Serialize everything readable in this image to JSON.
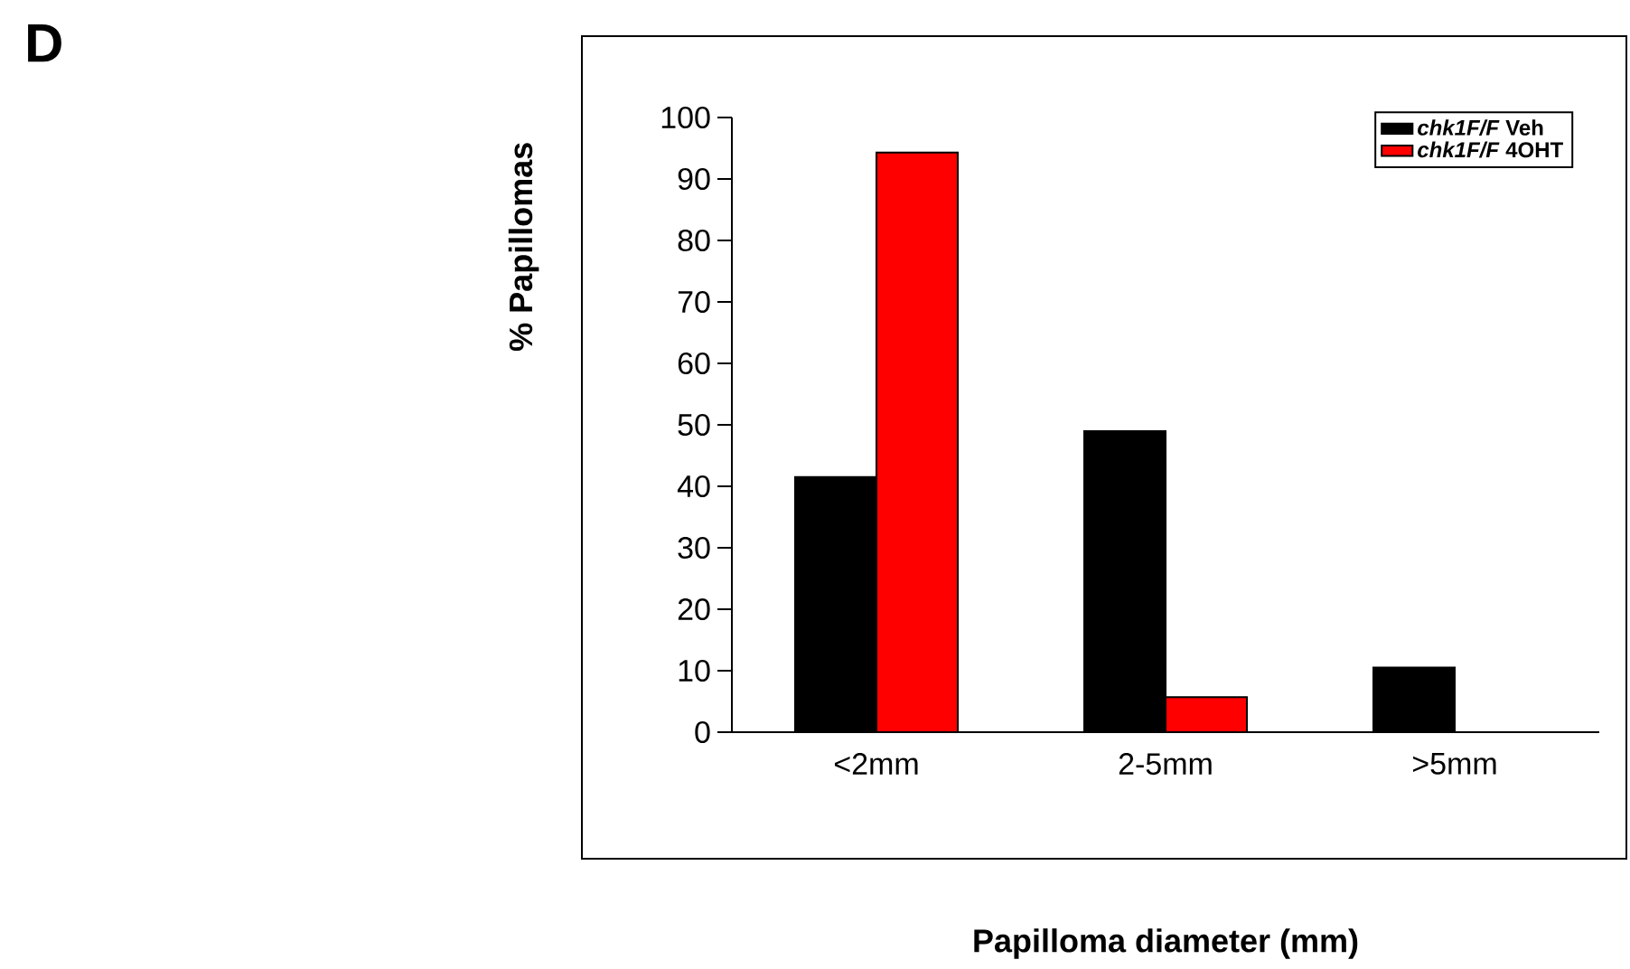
{
  "chart_data": {
    "type": "bar",
    "categories": [
      "<2mm",
      "2-5mm",
      ">5mm"
    ],
    "series": [
      {
        "name": "*chk1F/F* Veh",
        "color": "#000000",
        "values": [
          41.5,
          49,
          10.5
        ]
      },
      {
        "name": "*chk1F/F* 4OHT",
        "color": "#ff0000",
        "values": [
          94.3,
          5.7,
          null
        ]
      }
    ],
    "xlabel": "Papilloma diameter (mm)",
    "ylabel": "% Papillomas",
    "ylim": [
      0,
      100
    ],
    "yticks": [
      0,
      10,
      20,
      30,
      40,
      50,
      60,
      70,
      80,
      90,
      100
    ],
    "legend": "top right",
    "annotations": [
      "D"
    ]
  }
}
